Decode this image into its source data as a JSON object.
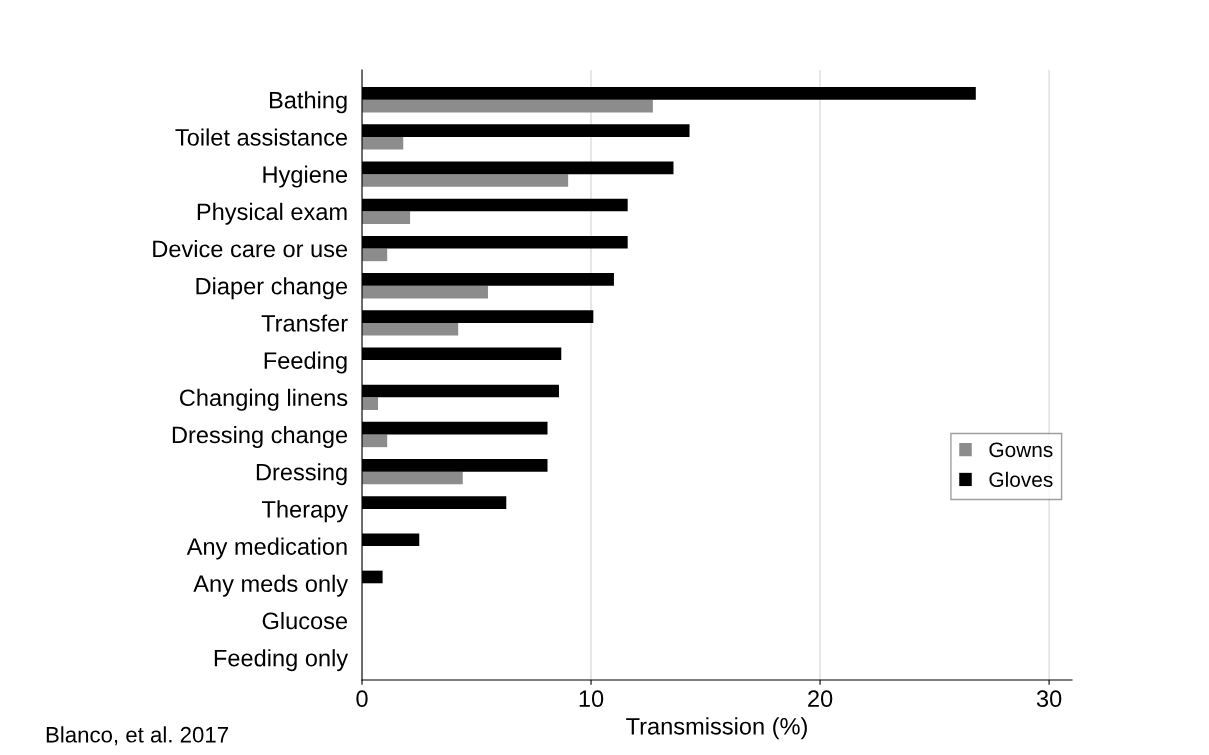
{
  "chart_data": {
    "type": "bar",
    "orientation": "horizontal",
    "xlabel": "Transmission (%)",
    "categories": [
      "Bathing",
      "Toilet assistance",
      "Hygiene",
      "Physical exam",
      "Device care or use",
      "Diaper change",
      "Transfer",
      "Feeding",
      "Changing linens",
      "Dressing change",
      "Dressing",
      "Therapy",
      "Any medication",
      "Any meds only",
      "Glucose",
      "Feeding only"
    ],
    "series": [
      {
        "name": "Gowns",
        "color": "#8c8c8c",
        "values": [
          12.7,
          1.8,
          9.0,
          2.1,
          1.1,
          5.5,
          4.2,
          0,
          0.7,
          1.1,
          4.4,
          0,
          0,
          0,
          0,
          0
        ]
      },
      {
        "name": "Gloves",
        "color": "#000000",
        "values": [
          26.8,
          14.3,
          13.6,
          11.6,
          11.6,
          11.0,
          10.1,
          8.7,
          8.6,
          8.1,
          8.1,
          6.3,
          2.5,
          0.9,
          0,
          0
        ]
      }
    ],
    "xlim": [
      0,
      31
    ],
    "xticks": [
      0,
      10,
      20,
      30
    ],
    "grid": "x",
    "legend": "right",
    "annotations": [
      "Blanco, et al. 2017"
    ]
  }
}
